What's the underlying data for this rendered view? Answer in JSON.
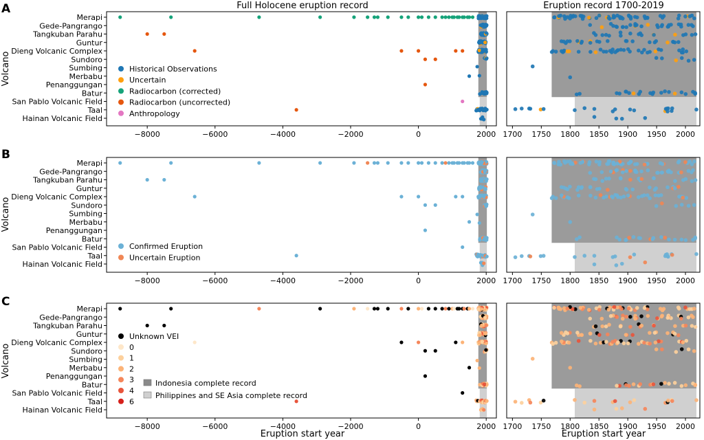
{
  "titles": {
    "left": "Full Holocene eruption record",
    "right": "Eruption record 1700-2019"
  },
  "panel_letters": [
    "A",
    "B",
    "C"
  ],
  "y_label": "Volcano",
  "x_label": "Eruption start year",
  "volcanoes": [
    "Merapi",
    "Gede-Pangrango",
    "Tangkuban Parahu",
    "Guntur",
    "Dieng Volcanic Complex",
    "Sundoro",
    "Sumbing",
    "Merbabu",
    "Penanggungan",
    "Batur",
    "San Pablo Volcanic Field",
    "Taal",
    "Hainan Volcanic Field"
  ],
  "axes": {
    "full": {
      "xlim": [
        -9200,
        2300
      ],
      "ticks": [
        -8000,
        -6000,
        -4000,
        -2000,
        0,
        2000
      ]
    },
    "recent": {
      "xlim": [
        1690,
        2025
      ],
      "ticks": [
        1700,
        1750,
        1800,
        1850,
        1900,
        1950,
        2000
      ]
    }
  },
  "shading": {
    "indonesia": {
      "start": 1768,
      "end": 2019,
      "rows": [
        0,
        9
      ],
      "color": "#8a8a8a",
      "label": "Indonesia complete record"
    },
    "philippines": {
      "start": 1808,
      "end": 2019,
      "rows": [
        10,
        12
      ],
      "color": "#d0d0d0",
      "label": "Philippines and SE Asia complete record"
    }
  },
  "colors": {
    "historical": "#1f77b4",
    "uncertain": "#ff9f0e",
    "radiocarbon_corrected": "#16a37a",
    "radiocarbon_uncorrected": "#e5570f",
    "anthropology": "#e377c2",
    "confirmed": "#6bb1d6",
    "uncertain_b": "#f08755",
    "vei_unknown": "#000000",
    "vei0": "#fee7c9",
    "vei1": "#fdd09c",
    "vei2": "#fcb377",
    "vei3": "#f5865a",
    "vei4": "#e8553c",
    "vei6": "#d6201b"
  },
  "legends": {
    "A": [
      "Historical Observations",
      "Uncertain",
      "Radiocarbon (corrected)",
      "Radiocarbon (uncorrected)",
      "Anthropology"
    ],
    "B": [
      "Confirmed Eruption",
      "Uncertain Eruption"
    ],
    "C": [
      "Unknown VEI",
      "0",
      "1",
      "2",
      "3",
      "4",
      "6"
    ],
    "C_shading": [
      "Indonesia complete record",
      "Philippines and SE Asia complete record"
    ]
  },
  "chart_data": [
    {
      "panel": "A",
      "type": "scatter",
      "title": "Full Holocene eruption record",
      "xlabel": "",
      "ylabel": "Volcano",
      "series": [
        {
          "name": "Radiocarbon (corrected)",
          "color": "#16a37a",
          "points": [
            [
              -8800,
              0
            ],
            [
              -7300,
              0
            ],
            [
              -4700,
              0
            ],
            [
              -2900,
              0
            ],
            [
              -1900,
              0
            ],
            [
              -1500,
              0
            ],
            [
              -1300,
              0
            ],
            [
              -900,
              0
            ],
            [
              -500,
              0
            ],
            [
              -300,
              0
            ],
            [
              0,
              0
            ],
            [
              100,
              0
            ],
            [
              300,
              0
            ],
            [
              500,
              0
            ],
            [
              700,
              0
            ],
            [
              800,
              0
            ],
            [
              900,
              0
            ],
            [
              1000,
              0
            ],
            [
              1050,
              0
            ],
            [
              1150,
              0
            ],
            [
              1200,
              0
            ],
            [
              1300,
              0
            ],
            [
              1350,
              0
            ],
            [
              1450,
              0
            ],
            [
              1500,
              0
            ],
            [
              1600,
              0
            ]
          ]
        },
        {
          "name": "Radiocarbon (uncorrected)",
          "color": "#e5570f",
          "points": [
            [
              -1200,
              0
            ],
            [
              -8000,
              2
            ],
            [
              -7500,
              2
            ],
            [
              -6600,
              4
            ],
            [
              -500,
              4
            ],
            [
              0,
              4
            ],
            [
              1100,
              4
            ],
            [
              200,
              5
            ],
            [
              500,
              5
            ],
            [
              200,
              8
            ],
            [
              -3600,
              11
            ]
          ]
        },
        {
          "name": "Uncertain",
          "color": "#ff9f0e",
          "points": [
            [
              1400,
              0
            ],
            [
              1800,
              4
            ]
          ]
        },
        {
          "name": "Anthropology",
          "color": "#e377c2",
          "points": [
            [
              1300,
              10
            ]
          ]
        },
        {
          "name": "Historical Observations",
          "color": "#1f77b4",
          "points": [
            [
              1300,
              4
            ],
            [
              1500,
              7
            ],
            [
              1700,
              11
            ],
            [
              1750,
              11
            ],
            [
              1800,
              11
            ],
            [
              1850,
              11
            ],
            [
              1900,
              11
            ],
            [
              1950,
              11
            ],
            [
              1850,
              12
            ]
          ]
        }
      ]
    },
    {
      "panel": "A-recent",
      "type": "scatter",
      "title": "Eruption record 1700-2019",
      "series": [
        {
          "name": "Historical Observations",
          "color": "#1f77b4",
          "points": [
            [
              1735,
              6
            ],
            [
              1800,
              7
            ],
            [
              1705,
              11
            ],
            [
              1716,
              11
            ],
            [
              1729,
              11
            ],
            [
              1731,
              11
            ],
            [
              1749,
              11
            ],
            [
              1754,
              11
            ],
            [
              1808,
              11
            ],
            [
              1825,
              11
            ],
            [
              1842,
              11
            ],
            [
              1874,
              11
            ],
            [
              1878,
              11
            ],
            [
              1904,
              11
            ],
            [
              1911,
              11
            ],
            [
              1965,
              11
            ],
            [
              1966,
              11
            ],
            [
              1968,
              11
            ],
            [
              1969,
              11
            ],
            [
              1970,
              11
            ],
            [
              1976,
              11
            ],
            [
              1977,
              11
            ],
            [
              1965,
              12
            ],
            [
              1900,
              12
            ]
          ]
        },
        {
          "name": "Uncertain",
          "color": "#ff9f0e",
          "points": [
            [
              1800,
              0
            ],
            [
              1850,
              0
            ],
            [
              1890,
              0
            ],
            [
              1910,
              0
            ],
            [
              1960,
              0
            ],
            [
              1860,
              1
            ],
            [
              1870,
              2
            ],
            [
              1900,
              4
            ],
            [
              1769,
              4
            ],
            [
              1887,
              11
            ],
            [
              1842,
              12
            ]
          ]
        }
      ]
    },
    {
      "panel": "B",
      "type": "scatter",
      "series": [
        {
          "name": "Confirmed Eruption",
          "color": "#6bb1d6"
        },
        {
          "name": "Uncertain Eruption",
          "color": "#f08755"
        }
      ]
    },
    {
      "panel": "C",
      "type": "scatter",
      "xlabel": "Eruption start year",
      "series": [
        {
          "name": "Unknown VEI",
          "color": "#000000"
        },
        {
          "name": "0",
          "color": "#fee7c9"
        },
        {
          "name": "1",
          "color": "#fdd09c"
        },
        {
          "name": "2",
          "color": "#fcb377"
        },
        {
          "name": "3",
          "color": "#f5865a"
        },
        {
          "name": "4",
          "color": "#e8553c"
        },
        {
          "name": "6",
          "color": "#d6201b"
        }
      ]
    }
  ]
}
